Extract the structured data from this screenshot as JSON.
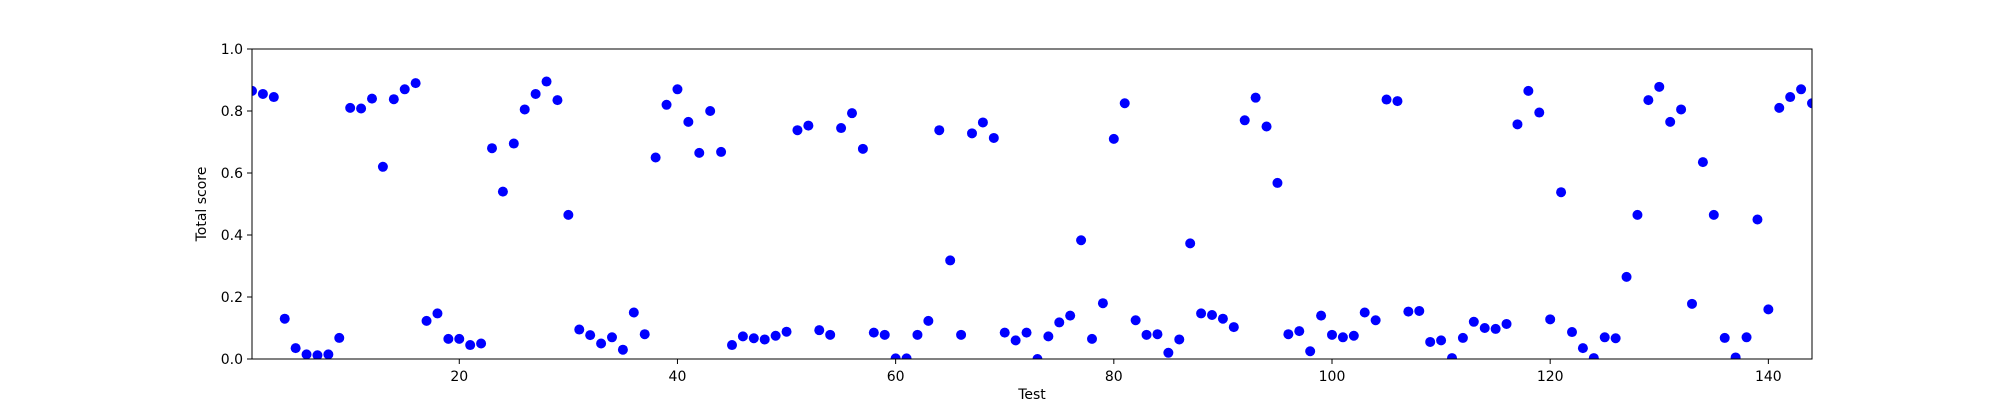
{
  "chart_data": {
    "type": "scatter",
    "xlabel": "Test",
    "ylabel": "Total score",
    "xlim": [
      1,
      144
    ],
    "ylim": [
      0,
      1.0
    ],
    "xticks": [
      20,
      40,
      60,
      80,
      100,
      120,
      140
    ],
    "yticks": [
      0.0,
      0.2,
      0.4,
      0.6,
      0.8,
      1.0
    ],
    "xtick_labels": [
      "20",
      "40",
      "60",
      "80",
      "100",
      "120",
      "140"
    ],
    "ytick_labels": [
      "0.0",
      "0.2",
      "0.4",
      "0.6",
      "0.8",
      "1.0"
    ],
    "grid": false,
    "marker_color": "#0000ff",
    "series": [
      {
        "x": [
          1,
          2,
          3,
          4,
          5,
          6,
          7,
          8,
          9,
          10,
          11,
          12,
          13,
          14,
          15,
          16,
          17,
          18,
          19,
          20,
          21,
          22,
          23,
          24,
          25,
          26,
          27,
          28,
          29,
          30,
          31,
          32,
          33,
          34,
          35,
          36,
          37,
          38,
          39,
          40,
          41,
          42,
          43,
          44,
          45,
          46,
          47,
          48,
          49,
          50,
          51,
          52,
          53,
          54,
          55,
          56,
          57,
          58,
          59,
          60,
          61,
          62,
          63,
          64,
          65,
          66,
          67,
          68,
          69,
          70,
          71,
          72,
          73,
          74,
          75,
          76,
          77,
          78,
          79,
          80,
          81,
          82,
          83,
          84,
          85,
          86,
          87,
          88,
          89,
          90,
          91,
          92,
          93,
          94,
          95,
          96,
          97,
          98,
          99,
          100,
          101,
          102,
          103,
          104,
          105,
          106,
          107,
          108,
          109,
          110,
          111,
          112,
          113,
          114,
          115,
          116,
          117,
          118,
          119,
          120,
          121,
          122,
          123,
          124,
          125,
          126,
          127,
          128,
          129,
          130,
          131,
          132,
          133,
          134,
          135,
          136,
          137,
          138,
          139,
          140,
          141,
          142,
          143,
          144
        ],
        "y": [
          0.865,
          0.855,
          0.845,
          0.13,
          0.035,
          0.015,
          0.012,
          0.015,
          0.068,
          0.81,
          0.808,
          0.84,
          0.62,
          0.838,
          0.87,
          0.89,
          0.123,
          0.147,
          0.065,
          0.065,
          0.045,
          0.05,
          0.68,
          0.54,
          0.695,
          0.805,
          0.855,
          0.895,
          0.835,
          0.465,
          0.095,
          0.077,
          0.05,
          0.07,
          0.03,
          0.15,
          0.08,
          0.65,
          0.82,
          0.87,
          0.765,
          0.665,
          0.8,
          0.668,
          0.045,
          0.073,
          0.067,
          0.063,
          0.075,
          0.088,
          0.738,
          0.753,
          0.093,
          0.078,
          0.745,
          0.793,
          0.678,
          0.085,
          0.078,
          0.002,
          0.002,
          0.078,
          0.123,
          0.738,
          0.318,
          0.078,
          0.728,
          0.763,
          0.713,
          0.085,
          0.06,
          0.085,
          0.0,
          0.073,
          0.118,
          0.14,
          0.383,
          0.065,
          0.18,
          0.71,
          0.825,
          0.125,
          0.078,
          0.08,
          0.02,
          0.063,
          0.373,
          0.147,
          0.142,
          0.13,
          0.103,
          0.77,
          0.843,
          0.75,
          0.568,
          0.08,
          0.09,
          0.025,
          0.14,
          0.078,
          0.07,
          0.075,
          0.15,
          0.125,
          0.837,
          0.832,
          0.153,
          0.155,
          0.055,
          0.06,
          0.003,
          0.068,
          0.12,
          0.1,
          0.097,
          0.113,
          0.757,
          0.865,
          0.795,
          0.128,
          0.538,
          0.087,
          0.035,
          0.003,
          0.07,
          0.067,
          0.265,
          0.465,
          0.835,
          0.878,
          0.765,
          0.805,
          0.178,
          0.635,
          0.465,
          0.068,
          0.005,
          0.07,
          0.45,
          0.16,
          0.81,
          0.845,
          0.87,
          0.825
        ]
      }
    ]
  }
}
